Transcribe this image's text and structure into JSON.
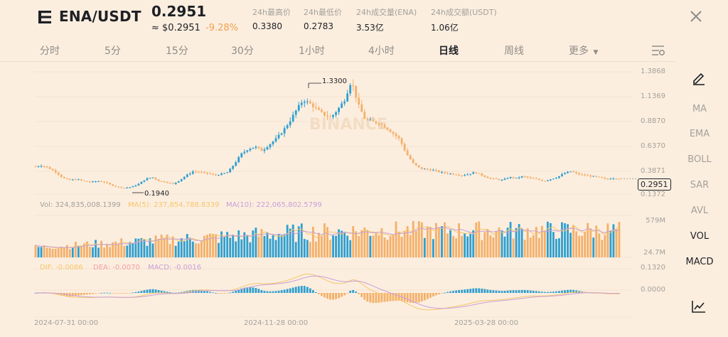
{
  "header": {
    "pair": "ENA/USDT",
    "price": "0.2951",
    "approx": "≈ $0.2951",
    "change": "-9.28%",
    "stats": [
      {
        "label": "24h最高价",
        "value": "0.3380"
      },
      {
        "label": "24h最低价",
        "value": "0.2783"
      },
      {
        "label": "24h成交量(ENA)",
        "value": "3.53亿"
      },
      {
        "label": "24h成交额(USDT)",
        "value": "1.06亿"
      }
    ]
  },
  "tabs": [
    "分时",
    "5分",
    "15分",
    "30分",
    "1小时",
    "4小时",
    "日线",
    "周线",
    "更多"
  ],
  "active_tab": "日线",
  "right_panel": {
    "indicators": [
      "MA",
      "EMA",
      "BOLL",
      "SAR",
      "AVL",
      "VOL",
      "MACD"
    ],
    "active": [
      "VOL",
      "MACD"
    ]
  },
  "price_axis": [
    "1.3868",
    "1.1369",
    "0.8870",
    "0.6370",
    "0.3871",
    "0.1372"
  ],
  "current_price_tag": "0.2951",
  "annotations": {
    "high": "1.3300",
    "low": "0.1940"
  },
  "watermark": "BINANCE",
  "volume": {
    "vol_label": "Vol: 324,835,008.1399",
    "ma5_label": "MA(5): 237,854,788.8339",
    "ma10_label": "MA(10): 222,065,802.5799",
    "axis_top": "579M",
    "axis_bottom": "24.7M"
  },
  "macd": {
    "dif_label": "DIF: -0.0086",
    "dea_label": "DEA: -0.0070",
    "macd_label": "MACD: -0.0016",
    "axis_top": "0.1320",
    "axis_mid": "0.0000"
  },
  "dates": [
    "2024-07-31 00:00",
    "2024-11-28 00:00",
    "2025-03-28 00:00"
  ],
  "colors": {
    "up": "#2E9FD0",
    "down": "#F3B06A",
    "ma5": "#F5C66A",
    "ma10": "#C79FD8",
    "bg": "#FCEEDF"
  },
  "chart_data": {
    "type": "candlestick",
    "ylim": [
      0.1372,
      1.3868
    ],
    "close_trend": [
      0.42,
      0.43,
      0.4,
      0.36,
      0.3,
      0.28,
      0.29,
      0.27,
      0.26,
      0.27,
      0.26,
      0.23,
      0.21,
      0.2,
      0.21,
      0.24,
      0.29,
      0.31,
      0.27,
      0.26,
      0.24,
      0.28,
      0.33,
      0.37,
      0.36,
      0.35,
      0.33,
      0.34,
      0.36,
      0.45,
      0.55,
      0.6,
      0.62,
      0.58,
      0.64,
      0.7,
      0.78,
      0.88,
      1.0,
      1.1,
      1.06,
      1.0,
      0.95,
      0.92,
      1.0,
      1.1,
      1.3,
      1.05,
      0.9,
      0.88,
      0.86,
      0.82,
      0.76,
      0.7,
      0.55,
      0.45,
      0.4,
      0.39,
      0.38,
      0.36,
      0.35,
      0.34,
      0.33,
      0.34,
      0.36,
      0.33,
      0.3,
      0.29,
      0.28,
      0.31,
      0.3,
      0.32,
      0.3,
      0.29,
      0.27,
      0.29,
      0.31,
      0.35,
      0.37,
      0.34,
      0.33,
      0.32,
      0.31,
      0.29,
      0.3,
      0.2951
    ]
  }
}
